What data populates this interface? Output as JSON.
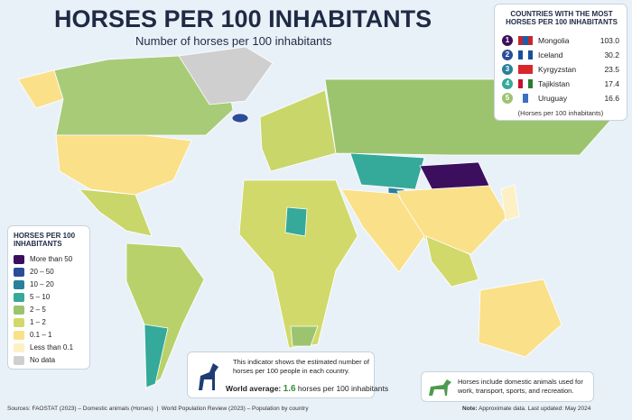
{
  "header": {
    "title": "HORSES PER 100 INHABITANTS",
    "subtitle": "Number of horses per 100 inhabitants"
  },
  "legend": {
    "title": "HORSES PER 100 INHABITANTS",
    "items": [
      {
        "label": "More than 50",
        "color": "#3b0f5e"
      },
      {
        "label": "20 – 50",
        "color": "#2c4c9a"
      },
      {
        "label": "10 – 20",
        "color": "#2a7f9b"
      },
      {
        "label": "5 – 10",
        "color": "#35a99a"
      },
      {
        "label": "2 – 5",
        "color": "#9cc46f"
      },
      {
        "label": "1 – 2",
        "color": "#d1d96a"
      },
      {
        "label": "0.1 – 1",
        "color": "#fbe08a"
      },
      {
        "label": "Less than 0.1",
        "color": "#fdf0c4"
      },
      {
        "label": "No data",
        "color": "#cfcfcf"
      }
    ]
  },
  "top_list": {
    "title": "COUNTRIES WITH THE MOST HORSES PER 100 INHABITANTS",
    "rows": [
      {
        "rank": "1",
        "country": "Mongolia",
        "value": "103.0",
        "color": "#3b0f5e"
      },
      {
        "rank": "2",
        "country": "Iceland",
        "value": "30.2",
        "color": "#2c4c9a"
      },
      {
        "rank": "3",
        "country": "Kyrgyzstan",
        "value": "23.5",
        "color": "#2a7f9b"
      },
      {
        "rank": "4",
        "country": "Tajikistan",
        "value": "17.4",
        "color": "#35a99a"
      },
      {
        "rank": "5",
        "country": "Uruguay",
        "value": "16.6",
        "color": "#9cc46f"
      }
    ],
    "note": "(Horses per 100 inhabitants)"
  },
  "info": {
    "text": "This indicator shows the estimated number of horses per 100 people in each country.",
    "average_label": "World average:",
    "average_value": "1.6",
    "average_unit": "horses per 100 inhabitants"
  },
  "side_note": "Horses include domestic animals used for work, transport, sports, and recreation.",
  "footer": {
    "sources": "Sources: FAOSTAT (2023) – Domestic animals (Horses)  |  World Population Review (2023) – Population by country",
    "note_label": "Note:",
    "note_text": "Approximate data. Last updated: May 2024"
  }
}
